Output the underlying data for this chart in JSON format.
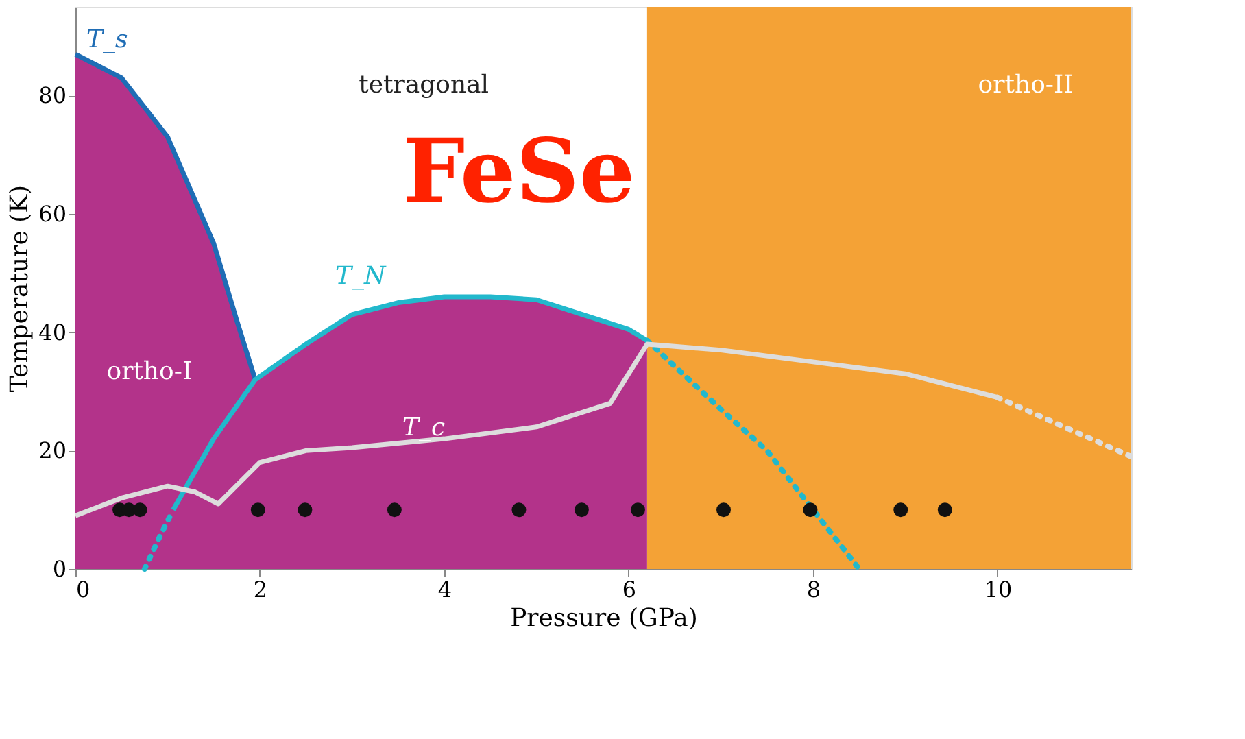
{
  "chart_data": {
    "type": "line",
    "title": "FeSe",
    "xlabel": "Pressure (GPa)",
    "ylabel": "Temperature (K)",
    "xlim": [
      0,
      11.45
    ],
    "ylim": [
      0,
      95
    ],
    "xticks": [
      0,
      2,
      4,
      6,
      8,
      10
    ],
    "yticks": [
      0,
      20,
      40,
      60,
      80
    ],
    "grid": false,
    "bands": [
      {
        "axis": "x",
        "from": 6.2,
        "to": 11.45,
        "color": "#f4a236"
      }
    ],
    "series": [
      {
        "type": "area",
        "color": "#b3338a",
        "x": [
          0,
          0.5,
          1.0,
          1.5,
          1.75,
          1.95,
          2.5,
          3.0,
          3.5,
          4.0,
          4.5,
          5.0,
          5.5,
          6.0,
          6.2
        ],
        "values": [
          87,
          83,
          73,
          55,
          42,
          32,
          38,
          43,
          45,
          46,
          46,
          45.5,
          43,
          40.5,
          38.6
        ]
      },
      {
        "color": "#1f6db5",
        "x": [
          0,
          0.5,
          1.0,
          1.5,
          1.75,
          1.95
        ],
        "values": [
          87,
          83,
          73,
          55,
          42,
          32
        ]
      },
      {
        "color": "#22b8cc",
        "x": [
          1.06,
          1.5,
          1.95,
          2.5,
          3.0,
          3.5,
          4.0,
          4.5,
          5.0,
          5.5,
          6.0,
          6.2
        ],
        "values": [
          10,
          22,
          32,
          38,
          43,
          45,
          46,
          46,
          45.5,
          43,
          40.5,
          38.6
        ]
      },
      {
        "type": "line",
        "color": "#22b8cc",
        "line_style": "dotted",
        "x": [
          6.2,
          7.0,
          7.5,
          8.0,
          8.5
        ],
        "values": [
          38.6,
          27,
          20,
          10,
          0
        ]
      },
      {
        "type": "line",
        "color": "#22b8cc",
        "line_style": "dotted",
        "x": [
          0.75,
          0.9,
          1.06
        ],
        "values": [
          0,
          5,
          10
        ]
      },
      {
        "color": "#dddddd",
        "x": [
          0,
          0.5,
          1.0,
          1.3,
          1.55,
          2.0,
          2.5,
          3.0,
          4.0,
          5.0,
          5.8,
          6.2,
          7.0,
          8.0,
          9.0,
          10.0
        ],
        "values": [
          9,
          12,
          14,
          13,
          11,
          18,
          20,
          20.5,
          22,
          24,
          28,
          38,
          37,
          35,
          33,
          29
        ]
      },
      {
        "type": "line",
        "color": "#dddddd",
        "line_style": "dotted",
        "x": [
          10.0,
          11.45
        ],
        "values": [
          29,
          19
        ]
      },
      {
        "type": "scatter",
        "color": "#111111",
        "marker": "circle",
        "x": [
          0.48,
          0.58,
          0.7,
          1.98,
          2.49,
          3.46,
          4.81,
          5.49,
          6.1,
          7.03,
          7.97,
          8.95,
          9.43
        ],
        "values": [
          10,
          10,
          10,
          10,
          10,
          10,
          10,
          10,
          10,
          10,
          10,
          10,
          10
        ]
      }
    ],
    "annotations": [
      "T_s",
      "tetragonal",
      "ortho-II",
      "T_N",
      "ortho-I",
      "T_c"
    ]
  }
}
